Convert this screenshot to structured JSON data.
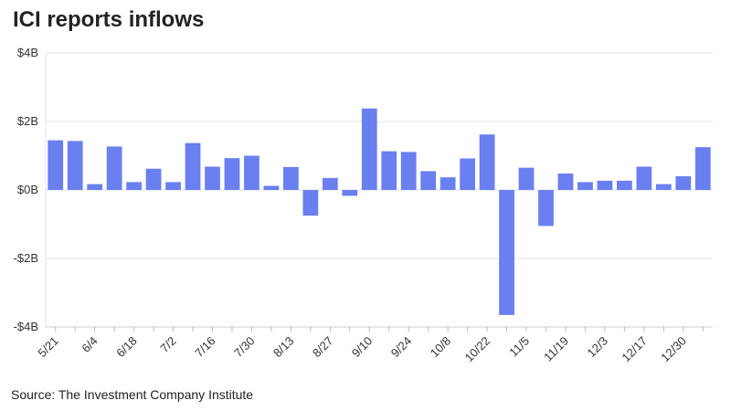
{
  "title": "ICI reports inflows",
  "source": "Source: The Investment Company Institute",
  "chart_data": {
    "type": "bar",
    "title": "ICI reports inflows",
    "xlabel": "",
    "ylabel": "",
    "ylim": [
      -4,
      4
    ],
    "unit": "$B",
    "yticks": [
      {
        "value": 4,
        "label": "$4B"
      },
      {
        "value": 2,
        "label": "$2B"
      },
      {
        "value": 0,
        "label": "$0B"
      },
      {
        "value": -2,
        "label": "-$2B"
      },
      {
        "value": -4,
        "label": "-$4B"
      }
    ],
    "x_tick_labels": [
      "5/21",
      "6/4",
      "6/18",
      "7/2",
      "7/16",
      "7/30",
      "8/13",
      "8/27",
      "9/10",
      "9/24",
      "10/8",
      "10/22",
      "11/5",
      "11/19",
      "12/3",
      "12/17",
      "12/30"
    ],
    "bar_color": "#6a7ff0",
    "values": [
      1.45,
      1.43,
      0.17,
      1.27,
      0.23,
      0.62,
      0.23,
      1.37,
      0.68,
      0.93,
      1.0,
      0.12,
      0.67,
      -0.75,
      0.35,
      -0.17,
      2.38,
      1.13,
      1.11,
      0.55,
      0.37,
      0.92,
      1.62,
      -3.65,
      0.65,
      -1.05,
      0.48,
      0.23,
      0.27,
      0.27,
      0.68,
      0.17,
      0.4,
      1.25
    ],
    "grid": "horizontal"
  }
}
